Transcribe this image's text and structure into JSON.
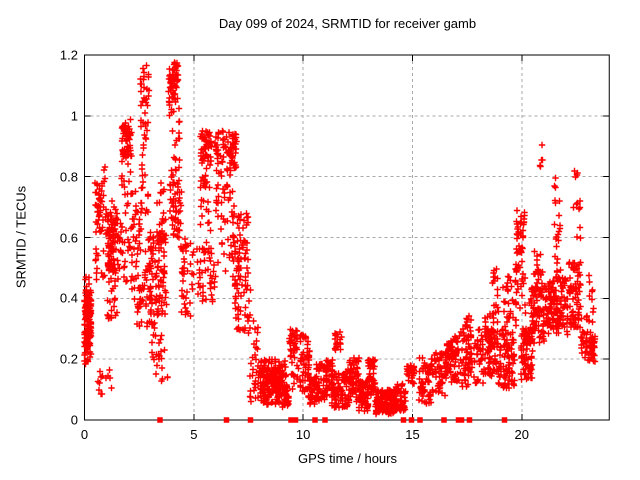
{
  "title": "Day 099 of 2024, SRMTID for receiver gamb",
  "chart_data": {
    "type": "scatter",
    "title": "Day 099 of 2024, SRMTID for receiver gamb",
    "xlabel": "GPS time / hours",
    "ylabel": "SRMTID / TECUs",
    "xlim": [
      0,
      24
    ],
    "ylim": [
      0,
      1.2
    ],
    "xticks": [
      0,
      5,
      10,
      15,
      20
    ],
    "yticks": [
      {
        "v": 0,
        "label": "0"
      },
      {
        "v": 0.2,
        "label": "0.2"
      },
      {
        "v": 0.4,
        "label": "0.4"
      },
      {
        "v": 0.6,
        "label": "0.6"
      },
      {
        "v": 0.8,
        "label": "0.8"
      },
      {
        "v": 1,
        "label": "1"
      },
      {
        "v": 1.2,
        "label": "1.2"
      }
    ],
    "grid": true,
    "grid_style": "dashed",
    "grid_color": "#a9a9a9",
    "frame_color": "#000000",
    "marker": "plus",
    "marker_color": "#ff0000",
    "marker_half_px": 3.2,
    "clusters_format": [
      "x_start_hours",
      "x_end_hours",
      "y_min_tecu",
      "y_max_tecu",
      "n_points"
    ],
    "clusters": [
      [
        0.0,
        0.32,
        0.24,
        0.42,
        120
      ],
      [
        0.0,
        0.3,
        0.18,
        0.25,
        20
      ],
      [
        0.02,
        0.28,
        0.42,
        0.47,
        8
      ],
      [
        0.45,
        1.0,
        0.45,
        0.85,
        40
      ],
      [
        0.55,
        0.8,
        0.62,
        0.8,
        18
      ],
      [
        0.6,
        1.25,
        0.08,
        0.17,
        13
      ],
      [
        1.0,
        1.6,
        0.33,
        0.72,
        60
      ],
      [
        1.05,
        1.45,
        0.48,
        0.66,
        55
      ],
      [
        1.6,
        2.2,
        0.45,
        0.86,
        45
      ],
      [
        1.7,
        2.15,
        0.86,
        0.99,
        55
      ],
      [
        2.15,
        2.6,
        0.35,
        0.76,
        40
      ],
      [
        2.55,
        2.95,
        0.95,
        1.17,
        30
      ],
      [
        2.58,
        2.92,
        0.6,
        0.95,
        22
      ],
      [
        2.4,
        3.1,
        0.3,
        0.56,
        40
      ],
      [
        2.9,
        3.75,
        0.34,
        0.62,
        85
      ],
      [
        3.0,
        3.8,
        0.1,
        0.32,
        28
      ],
      [
        3.3,
        3.7,
        0.58,
        0.78,
        22
      ],
      [
        3.85,
        4.3,
        1.05,
        1.175,
        55
      ],
      [
        3.85,
        4.35,
        0.95,
        1.05,
        10
      ],
      [
        3.9,
        4.35,
        0.76,
        1.0,
        20
      ],
      [
        3.9,
        4.45,
        0.6,
        0.8,
        45
      ],
      [
        4.4,
        5.0,
        0.34,
        0.6,
        40
      ],
      [
        5.3,
        5.8,
        0.85,
        0.95,
        40
      ],
      [
        5.3,
        5.8,
        0.55,
        0.85,
        30
      ],
      [
        5.15,
        6.0,
        0.38,
        0.58,
        40
      ],
      [
        5.95,
        6.95,
        0.82,
        0.95,
        75
      ],
      [
        6.0,
        6.9,
        0.48,
        0.82,
        45
      ],
      [
        6.75,
        7.5,
        0.44,
        0.68,
        65
      ],
      [
        6.85,
        7.6,
        0.28,
        0.45,
        35
      ],
      [
        7.55,
        7.95,
        0.06,
        0.35,
        30
      ],
      [
        8.0,
        9.25,
        0.05,
        0.2,
        150
      ],
      [
        8.15,
        9.0,
        0.09,
        0.17,
        80
      ],
      [
        9.05,
        9.35,
        0.04,
        0.12,
        20
      ],
      [
        9.35,
        9.75,
        0.2,
        0.3,
        30
      ],
      [
        9.4,
        9.8,
        0.1,
        0.2,
        12
      ],
      [
        9.85,
        10.3,
        0.08,
        0.28,
        55
      ],
      [
        10.25,
        10.65,
        0.05,
        0.14,
        45
      ],
      [
        10.6,
        11.1,
        0.06,
        0.19,
        45
      ],
      [
        11.05,
        11.35,
        0.1,
        0.2,
        30
      ],
      [
        11.45,
        11.75,
        0.22,
        0.29,
        22
      ],
      [
        11.3,
        12.1,
        0.04,
        0.16,
        90
      ],
      [
        12.05,
        12.55,
        0.06,
        0.21,
        70
      ],
      [
        12.55,
        13.0,
        0.03,
        0.13,
        70
      ],
      [
        12.95,
        13.3,
        0.08,
        0.2,
        45
      ],
      [
        13.3,
        14.25,
        0.02,
        0.1,
        130
      ],
      [
        14.2,
        14.7,
        0.03,
        0.12,
        50
      ],
      [
        14.74,
        15.08,
        0.12,
        0.18,
        40
      ],
      [
        15.3,
        15.95,
        0.05,
        0.22,
        65
      ],
      [
        16.0,
        16.55,
        0.08,
        0.22,
        50
      ],
      [
        16.5,
        17.05,
        0.12,
        0.26,
        55
      ],
      [
        16.95,
        17.75,
        0.11,
        0.3,
        70
      ],
      [
        17.4,
        17.7,
        0.26,
        0.35,
        14
      ],
      [
        17.8,
        18.8,
        0.12,
        0.3,
        80
      ],
      [
        18.3,
        18.75,
        0.25,
        0.35,
        25
      ],
      [
        18.6,
        19.05,
        0.14,
        0.5,
        35
      ],
      [
        18.85,
        19.7,
        0.1,
        0.28,
        80
      ],
      [
        19.1,
        19.6,
        0.28,
        0.5,
        30
      ],
      [
        19.7,
        20.2,
        0.3,
        0.55,
        30
      ],
      [
        19.75,
        20.15,
        0.55,
        0.69,
        35
      ],
      [
        19.95,
        20.5,
        0.13,
        0.3,
        70
      ],
      [
        20.35,
        21.25,
        0.25,
        0.45,
        110
      ],
      [
        20.55,
        20.95,
        0.42,
        0.56,
        18
      ],
      [
        20.8,
        21.05,
        0.83,
        0.91,
        5
      ],
      [
        21.25,
        22.1,
        0.28,
        0.47,
        110
      ],
      [
        21.5,
        21.8,
        0.47,
        0.8,
        22
      ],
      [
        22.15,
        22.7,
        0.3,
        0.52,
        70
      ],
      [
        22.3,
        22.75,
        0.55,
        0.87,
        13
      ],
      [
        22.7,
        23.0,
        0.2,
        0.35,
        20
      ],
      [
        22.95,
        23.35,
        0.19,
        0.29,
        45
      ],
      [
        23.0,
        23.3,
        0.32,
        0.5,
        10
      ]
    ],
    "axis_marks": {
      "shape": "filled-square",
      "color": "#ff0000",
      "size": 5.5,
      "y": 0,
      "hours": [
        3.45,
        6.5,
        7.6,
        9.45,
        9.65,
        10.55,
        11.0,
        14.6,
        14.95,
        15.35,
        16.45,
        17.1,
        17.25,
        17.6,
        19.2
      ]
    }
  }
}
